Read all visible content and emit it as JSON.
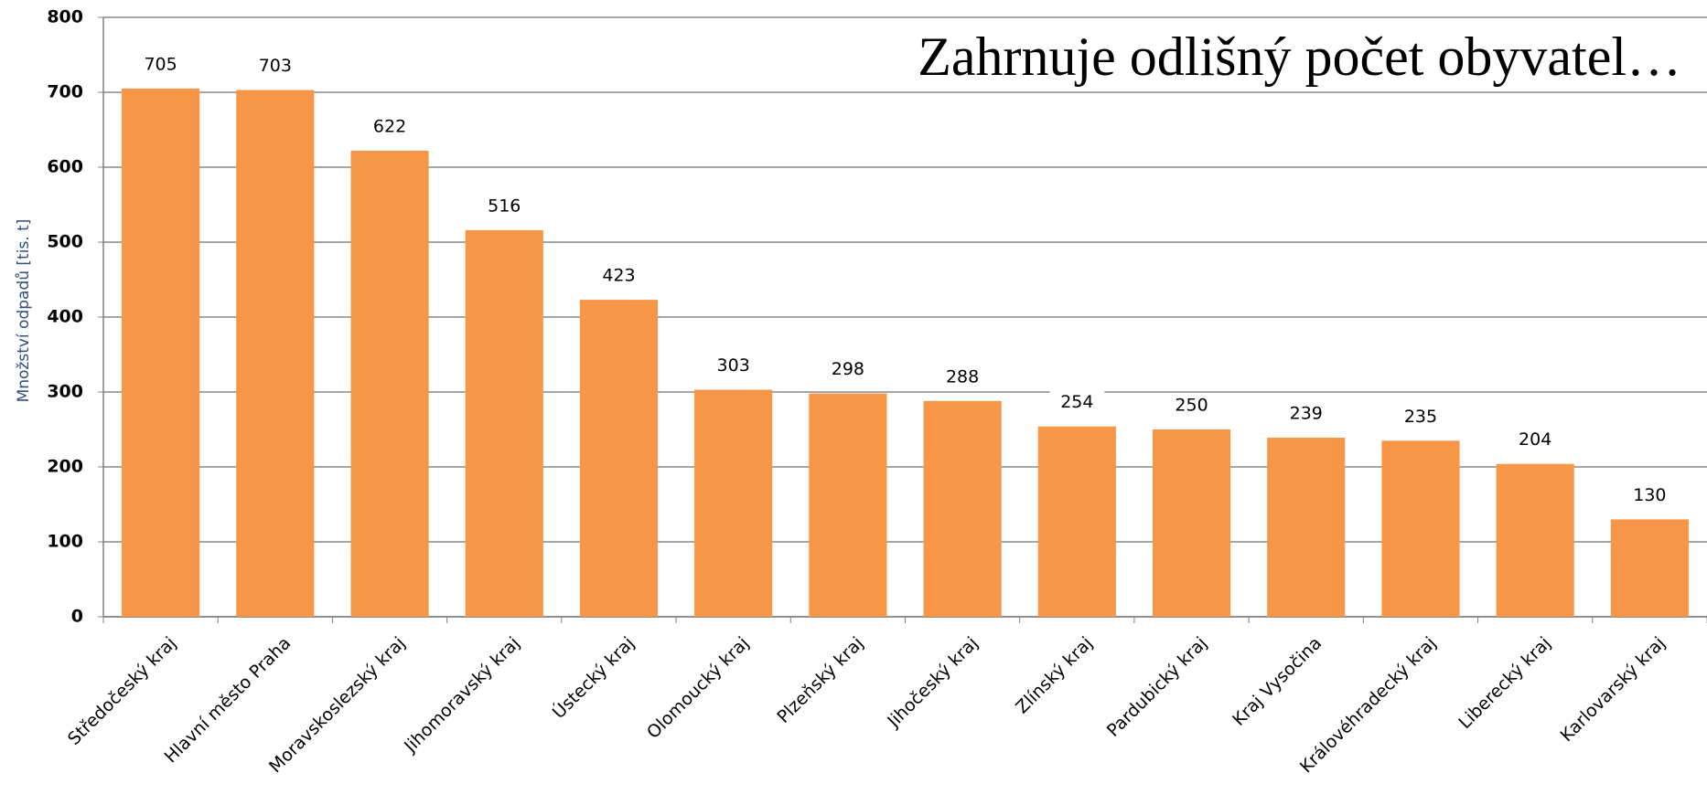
{
  "chart_data": {
    "type": "bar",
    "annotation": "Zahrnuje odlišný počet obyvatel…",
    "y_label": "Množství odpadů [tis. t]",
    "categories": [
      "Středočeský kraj",
      "Hlavní město Praha",
      "Moravskoslezský kraj",
      "Jihomoravský kraj",
      "Ústecký kraj",
      "Olomoucký kraj",
      "Plzeňský kraj",
      "Jihočeský kraj",
      "Zlínský kraj",
      "Pardubický kraj",
      "Kraj Vysočina",
      "Královéhradecký kraj",
      "Liberecký kraj",
      "Karlovarský kraj"
    ],
    "values": [
      705,
      703,
      622,
      516,
      423,
      303,
      298,
      288,
      254,
      250,
      239,
      235,
      204,
      130
    ],
    "color": "#f79646",
    "ylim": [
      0,
      800
    ],
    "yticks": [
      0,
      100,
      200,
      300,
      400,
      500,
      600,
      700,
      800
    ],
    "grid": true
  }
}
